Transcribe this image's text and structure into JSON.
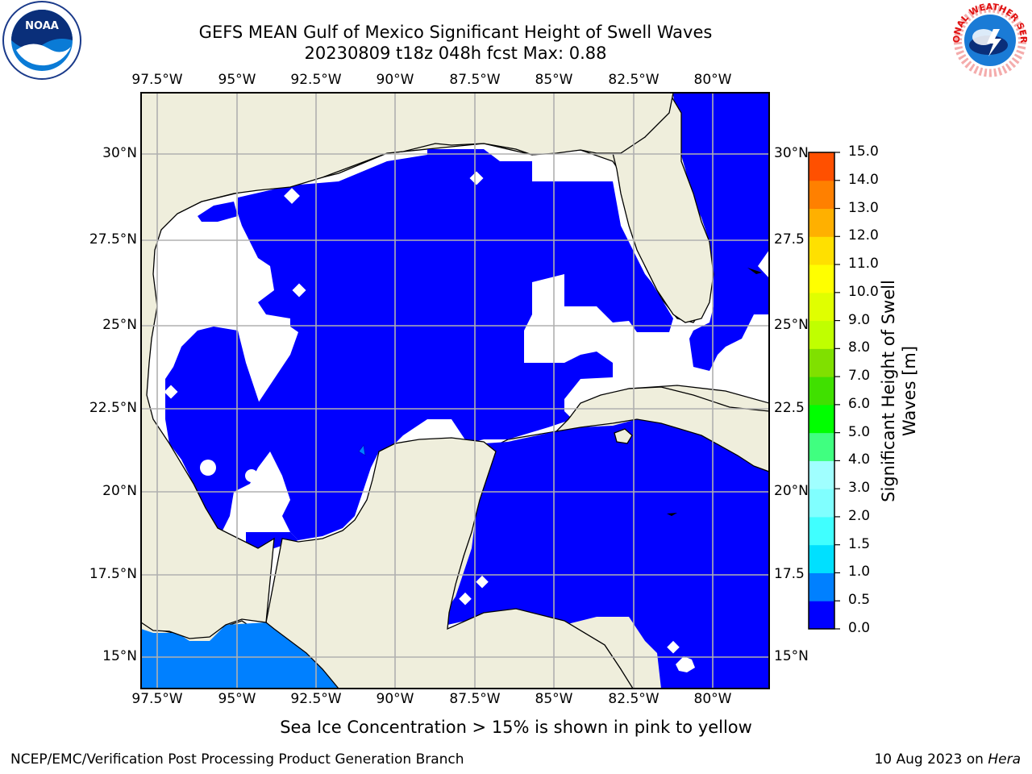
{
  "title": {
    "line1": "GEFS MEAN Gulf of Mexico Significant Height of Swell Waves",
    "line2": "20230809 t18z 048h fcst   Max: 0.88"
  },
  "logos": {
    "noaa_text": "NOAA",
    "nws_text": "NATIONAL WEATHER SERVICE"
  },
  "axes": {
    "lon_labels": [
      "97.5°W",
      "95°W",
      "92.5°W",
      "90°W",
      "87.5°W",
      "85°W",
      "82.5°W",
      "80°W"
    ],
    "lat_labels_left": [
      "30°N",
      "27.5°N",
      "25°N",
      "22.5°N",
      "20°N",
      "17.5°N",
      "15°N"
    ],
    "lat_labels_right": [
      "30°N",
      "27.5",
      "25°N",
      "22.5",
      "20°N",
      "17.5",
      "15°N"
    ]
  },
  "colorbar": {
    "label": "Significant Height of Swell Waves [m]",
    "ticks": [
      "15.0",
      "14.0",
      "13.0",
      "12.0",
      "11.0",
      "10.0",
      "9.0",
      "8.0",
      "7.0",
      "6.0",
      "5.0",
      "4.0",
      "3.0",
      "2.0",
      "1.5",
      "1.0",
      "0.5",
      "0.0"
    ],
    "colors": [
      "#0000ff",
      "#0080ff",
      "#00e0ff",
      "#40ffff",
      "#80ffff",
      "#a0ffff",
      "#40ff80",
      "#00ff00",
      "#40e000",
      "#80e000",
      "#c0ff00",
      "#e0ff00",
      "#ffff00",
      "#ffe000",
      "#ffb000",
      "#ff8000",
      "#ff5000",
      "#ff2000",
      "#ff0000"
    ]
  },
  "map_colors": {
    "land": "#efeedc",
    "ocean_low": "#0000ff",
    "ocean_mid": "#0080ff",
    "nodata": "#ffffff",
    "grid": "#b0b0b0"
  },
  "note": "Sea Ice Concentration > 15% is shown in pink to yellow",
  "footer": {
    "left": "NCEP/EMC/Verification Post Processing Product Generation Branch",
    "right_prefix": "10 Aug 2023 on ",
    "right_host": "Hera"
  }
}
